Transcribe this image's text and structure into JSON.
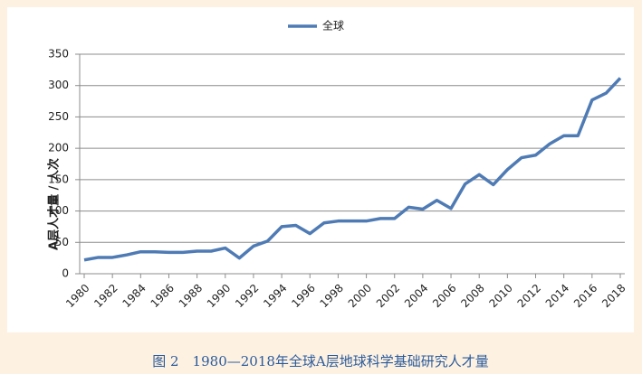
{
  "chart_data": {
    "type": "line",
    "legend": "top",
    "caption": "图 2　1980—2018年全球A层地球科学基础研究人才量",
    "y_label": "A层人才量 / 人次",
    "x": [
      1980,
      1981,
      1982,
      1983,
      1984,
      1985,
      1986,
      1987,
      1988,
      1989,
      1990,
      1991,
      1992,
      1993,
      1994,
      1995,
      1996,
      1997,
      1998,
      1999,
      2000,
      2001,
      2002,
      2003,
      2004,
      2005,
      2006,
      2007,
      2008,
      2009,
      2010,
      2011,
      2012,
      2013,
      2014,
      2015,
      2016,
      2017,
      2018
    ],
    "series": [
      {
        "name": "全球",
        "color": "#4f7bb5",
        "values": [
          22,
          26,
          26,
          30,
          35,
          35,
          34,
          34,
          36,
          36,
          41,
          25,
          44,
          52,
          75,
          77,
          64,
          81,
          84,
          84,
          84,
          88,
          88,
          106,
          103,
          117,
          104,
          143,
          158,
          142,
          166,
          185,
          189,
          207,
          220,
          220,
          277,
          288,
          312
        ]
      }
    ],
    "xlim": [
      1980,
      2018
    ],
    "xticks": [
      1980,
      1982,
      1984,
      1986,
      1988,
      1990,
      1992,
      1994,
      1996,
      1998,
      2000,
      2002,
      2004,
      2006,
      2008,
      2010,
      2012,
      2014,
      2016,
      2018
    ],
    "ylim": [
      0,
      350
    ],
    "yticks": [
      0,
      50,
      100,
      150,
      200,
      250,
      300,
      350
    ],
    "grid": true
  }
}
